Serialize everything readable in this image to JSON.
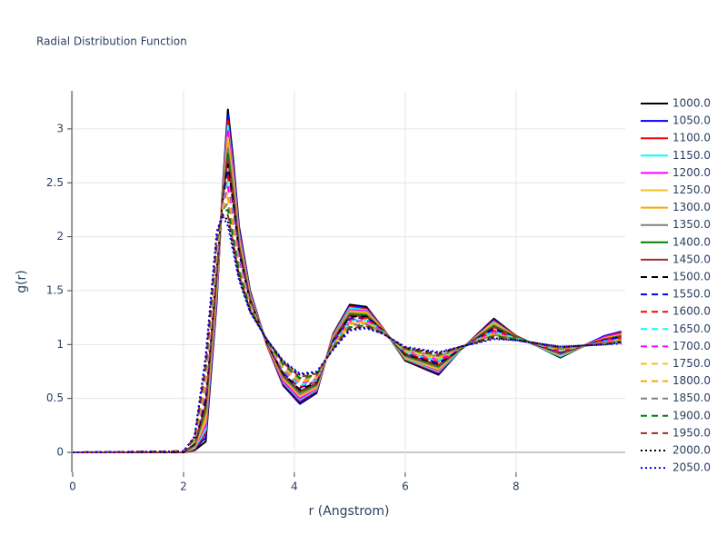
{
  "chart_data": {
    "type": "line",
    "title": "Radial Distribution Function",
    "x_label": "r (Angstrom)",
    "y_label": "g(r)",
    "xlim": [
      0,
      9.97
    ],
    "ylim": [
      -0.185,
      3.353
    ],
    "xticks": [
      0,
      2,
      4,
      6,
      8
    ],
    "yticks": [
      0,
      0.5,
      1,
      1.5,
      2,
      2.5,
      3
    ],
    "grid": true,
    "x": [
      0,
      2,
      2.2,
      2.4,
      2.6,
      2.7,
      2.8,
      2.9,
      3.0,
      3.2,
      3.5,
      3.8,
      4.1,
      4.4,
      4.7,
      5.0,
      5.3,
      5.6,
      6.0,
      6.6,
      7.0,
      7.6,
      8.0,
      8.8,
      9.6,
      9.9
    ],
    "series": [
      {
        "name": "1000.0",
        "color": "#000000",
        "dash": "solid",
        "values": [
          0,
          0,
          0.02,
          0.1,
          1.4,
          2.4,
          3.18,
          2.7,
          2.1,
          1.5,
          1.0,
          0.62,
          0.45,
          0.55,
          1.1,
          1.37,
          1.35,
          1.15,
          0.85,
          0.72,
          0.95,
          1.24,
          1.08,
          0.88,
          1.08,
          1.12
        ]
      },
      {
        "name": "1050.0",
        "color": "#0000ff",
        "dash": "solid",
        "values": [
          0,
          0,
          0.03,
          0.14,
          1.43,
          2.39,
          3.13,
          2.66,
          2.08,
          1.49,
          1.0,
          0.63,
          0.46,
          0.56,
          1.09,
          1.36,
          1.34,
          1.15,
          0.86,
          0.73,
          0.95,
          1.23,
          1.08,
          0.89,
          1.08,
          1.12
        ]
      },
      {
        "name": "1100.0",
        "color": "#ff0000",
        "dash": "solid",
        "values": [
          0,
          0,
          0.03,
          0.18,
          1.46,
          2.38,
          3.08,
          2.62,
          2.05,
          1.48,
          1.0,
          0.64,
          0.48,
          0.57,
          1.09,
          1.35,
          1.33,
          1.15,
          0.86,
          0.74,
          0.95,
          1.22,
          1.08,
          0.89,
          1.07,
          1.11
        ]
      },
      {
        "name": "1150.0",
        "color": "#00ffff",
        "dash": "solid",
        "values": [
          0,
          0,
          0.04,
          0.21,
          1.49,
          2.37,
          3.03,
          2.58,
          2.03,
          1.47,
          1.01,
          0.65,
          0.49,
          0.58,
          1.08,
          1.34,
          1.32,
          1.14,
          0.87,
          0.75,
          0.95,
          1.21,
          1.07,
          0.89,
          1.07,
          1.1
        ]
      },
      {
        "name": "1200.0",
        "color": "#ff00ff",
        "dash": "solid",
        "values": [
          0,
          0,
          0.05,
          0.25,
          1.52,
          2.36,
          2.98,
          2.54,
          2.01,
          1.46,
          1.01,
          0.66,
          0.5,
          0.59,
          1.07,
          1.32,
          1.31,
          1.14,
          0.88,
          0.76,
          0.96,
          1.2,
          1.07,
          0.9,
          1.07,
          1.1
        ]
      },
      {
        "name": "1250.0",
        "color": "#f2c12e",
        "dash": "solid",
        "values": [
          0,
          0,
          0.05,
          0.29,
          1.55,
          2.35,
          2.92,
          2.5,
          1.98,
          1.45,
          1.01,
          0.68,
          0.52,
          0.6,
          1.06,
          1.31,
          1.3,
          1.14,
          0.88,
          0.77,
          0.96,
          1.2,
          1.07,
          0.9,
          1.06,
          1.09
        ]
      },
      {
        "name": "1300.0",
        "color": "#ffa500",
        "dash": "solid",
        "values": [
          0,
          0,
          0.06,
          0.33,
          1.59,
          2.34,
          2.87,
          2.46,
          1.96,
          1.44,
          1.01,
          0.69,
          0.53,
          0.61,
          1.06,
          1.3,
          1.29,
          1.14,
          0.89,
          0.78,
          0.96,
          1.19,
          1.07,
          0.91,
          1.06,
          1.09
        ]
      },
      {
        "name": "1350.0",
        "color": "#808080",
        "dash": "solid",
        "values": [
          0,
          0,
          0.06,
          0.37,
          1.62,
          2.33,
          2.82,
          2.42,
          1.93,
          1.43,
          1.02,
          0.7,
          0.54,
          0.62,
          1.05,
          1.29,
          1.28,
          1.13,
          0.89,
          0.79,
          0.96,
          1.18,
          1.07,
          0.91,
          1.05,
          1.08
        ]
      },
      {
        "name": "1400.0",
        "color": "#008000",
        "dash": "solid",
        "values": [
          0,
          0,
          0.07,
          0.41,
          1.65,
          2.32,
          2.77,
          2.38,
          1.91,
          1.42,
          1.02,
          0.71,
          0.56,
          0.63,
          1.04,
          1.28,
          1.27,
          1.13,
          0.9,
          0.8,
          0.96,
          1.17,
          1.07,
          0.92,
          1.05,
          1.08
        ]
      },
      {
        "name": "1450.0",
        "color": "#a52a2a",
        "dash": "solid",
        "values": [
          0,
          0,
          0.08,
          0.44,
          1.68,
          2.31,
          2.72,
          2.34,
          1.89,
          1.41,
          1.02,
          0.72,
          0.57,
          0.64,
          1.04,
          1.27,
          1.26,
          1.13,
          0.91,
          0.81,
          0.96,
          1.16,
          1.06,
          0.92,
          1.05,
          1.07
        ]
      },
      {
        "name": "1500.0",
        "color": "#000000",
        "dash": "dash",
        "values": [
          0,
          0,
          0.08,
          0.48,
          1.71,
          2.31,
          2.67,
          2.3,
          1.86,
          1.4,
          1.02,
          0.73,
          0.58,
          0.65,
          1.03,
          1.26,
          1.26,
          1.13,
          0.91,
          0.82,
          0.96,
          1.15,
          1.06,
          0.93,
          1.04,
          1.07
        ]
      },
      {
        "name": "1550.0",
        "color": "#0000ff",
        "dash": "dash",
        "values": [
          0,
          0.01,
          0.09,
          0.52,
          1.74,
          2.3,
          2.61,
          2.25,
          1.84,
          1.4,
          1.03,
          0.74,
          0.6,
          0.66,
          1.02,
          1.24,
          1.25,
          1.12,
          0.92,
          0.83,
          0.97,
          1.14,
          1.06,
          0.93,
          1.04,
          1.06
        ]
      },
      {
        "name": "1600.0",
        "color": "#ff0000",
        "dash": "dash",
        "values": [
          0,
          0.01,
          0.09,
          0.56,
          1.77,
          2.29,
          2.56,
          2.21,
          1.81,
          1.39,
          1.03,
          0.75,
          0.61,
          0.66,
          1.01,
          1.23,
          1.24,
          1.12,
          0.92,
          0.84,
          0.97,
          1.13,
          1.06,
          0.94,
          1.03,
          1.06
        ]
      },
      {
        "name": "1650.0",
        "color": "#00ffff",
        "dash": "dash",
        "values": [
          0,
          0.01,
          0.1,
          0.6,
          1.8,
          2.28,
          2.51,
          2.17,
          1.79,
          1.38,
          1.03,
          0.76,
          0.62,
          0.67,
          1.01,
          1.22,
          1.23,
          1.12,
          0.93,
          0.85,
          0.97,
          1.12,
          1.06,
          0.94,
          1.03,
          1.05
        ]
      },
      {
        "name": "1700.0",
        "color": "#ff00ff",
        "dash": "dash",
        "values": [
          0,
          0.01,
          0.11,
          0.63,
          1.83,
          2.27,
          2.46,
          2.13,
          1.77,
          1.37,
          1.03,
          0.77,
          0.64,
          0.68,
          1.0,
          1.21,
          1.22,
          1.12,
          0.94,
          0.86,
          0.97,
          1.11,
          1.05,
          0.95,
          1.03,
          1.05
        ]
      },
      {
        "name": "1750.0",
        "color": "#f2c12e",
        "dash": "dash",
        "values": [
          0,
          0.01,
          0.11,
          0.67,
          1.86,
          2.26,
          2.41,
          2.09,
          1.74,
          1.36,
          1.04,
          0.78,
          0.65,
          0.69,
          0.99,
          1.2,
          1.21,
          1.11,
          0.94,
          0.87,
          0.97,
          1.1,
          1.05,
          0.95,
          1.02,
          1.04
        ]
      },
      {
        "name": "1800.0",
        "color": "#ffa500",
        "dash": "dash",
        "values": [
          0,
          0.01,
          0.12,
          0.71,
          1.9,
          2.25,
          2.36,
          2.05,
          1.72,
          1.35,
          1.04,
          0.8,
          0.66,
          0.7,
          0.99,
          1.19,
          1.2,
          1.11,
          0.95,
          0.88,
          0.97,
          1.1,
          1.05,
          0.96,
          1.02,
          1.04
        ]
      },
      {
        "name": "1850.0",
        "color": "#808080",
        "dash": "dash",
        "values": [
          0,
          0.01,
          0.13,
          0.75,
          1.93,
          2.24,
          2.31,
          2.01,
          1.7,
          1.34,
          1.04,
          0.81,
          0.68,
          0.71,
          0.98,
          1.18,
          1.19,
          1.11,
          0.96,
          0.89,
          0.97,
          1.09,
          1.05,
          0.96,
          1.02,
          1.03
        ]
      },
      {
        "name": "1900.0",
        "color": "#008000",
        "dash": "dash",
        "values": [
          0,
          0.01,
          0.13,
          0.79,
          1.96,
          2.23,
          2.25,
          1.97,
          1.67,
          1.33,
          1.04,
          0.82,
          0.69,
          0.72,
          0.97,
          1.16,
          1.18,
          1.11,
          0.96,
          0.9,
          0.98,
          1.08,
          1.05,
          0.97,
          1.01,
          1.03
        ]
      },
      {
        "name": "1950.0",
        "color": "#a52a2a",
        "dash": "dash",
        "values": [
          0,
          0.01,
          0.14,
          0.82,
          1.99,
          2.22,
          2.2,
          1.93,
          1.65,
          1.32,
          1.05,
          0.83,
          0.7,
          0.73,
          0.96,
          1.15,
          1.17,
          1.1,
          0.97,
          0.91,
          0.98,
          1.07,
          1.04,
          0.97,
          1.01,
          1.02
        ]
      },
      {
        "name": "2000.0",
        "color": "#000000",
        "dash": "dot",
        "values": [
          0,
          0.01,
          0.14,
          0.86,
          2.02,
          2.21,
          2.15,
          1.89,
          1.62,
          1.31,
          1.05,
          0.84,
          0.72,
          0.74,
          0.96,
          1.14,
          1.16,
          1.1,
          0.97,
          0.92,
          0.98,
          1.06,
          1.04,
          0.98,
          1.0,
          1.02
        ]
      },
      {
        "name": "2050.0",
        "color": "#0000ff",
        "dash": "dot",
        "values": [
          0,
          0.01,
          0.15,
          0.9,
          2.05,
          2.2,
          2.1,
          1.85,
          1.6,
          1.3,
          1.05,
          0.85,
          0.73,
          0.75,
          0.95,
          1.13,
          1.15,
          1.1,
          0.98,
          0.93,
          0.98,
          1.05,
          1.04,
          0.98,
          1.0,
          1.01
        ]
      }
    ]
  }
}
